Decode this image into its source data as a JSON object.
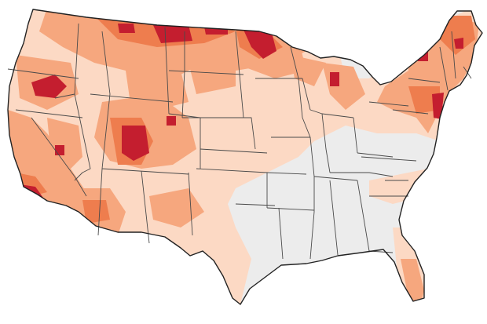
{
  "map": {
    "region": "contiguous-united-states",
    "projection": "albers-like",
    "legend": null,
    "colors": {
      "background": "#ffffff",
      "none": "#ececec",
      "level1": "#fcd9c4",
      "level2": "#f6a77e",
      "level3": "#ee7d4e",
      "level4": "#c41e2f",
      "state_borders": "#4a4a4a",
      "coastline": "#222222"
    }
  }
}
